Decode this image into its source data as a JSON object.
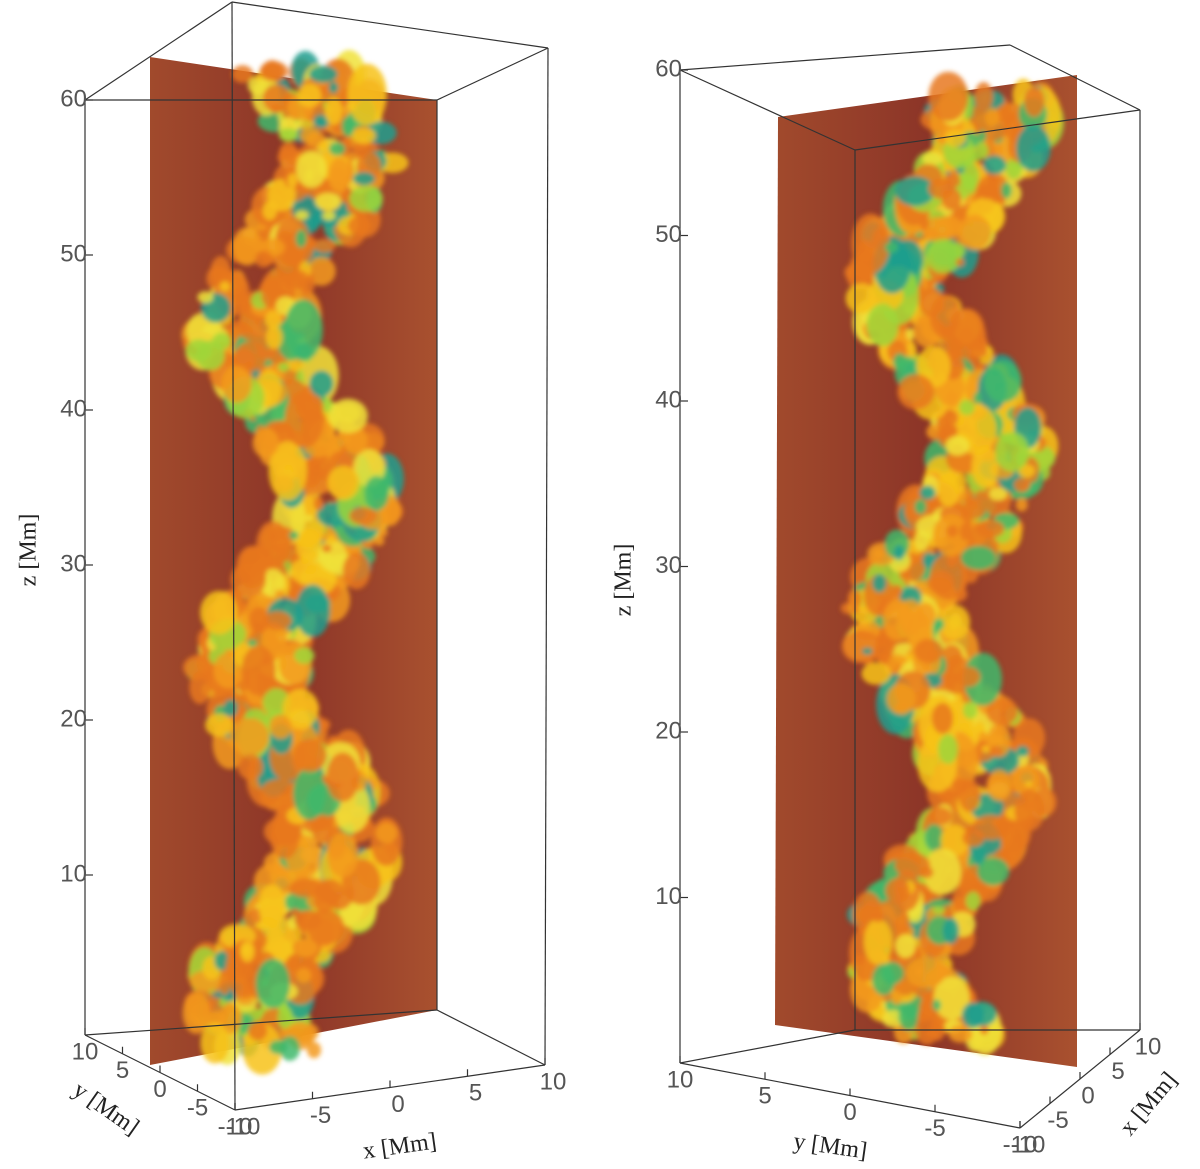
{
  "chart_data": [
    {
      "type": "3d-slice",
      "zlabel": "z [Mm]",
      "zlim": [
        0,
        60
      ],
      "zticks": [
        10,
        20,
        30,
        40,
        50,
        60
      ],
      "xlabel": "x [Mm]",
      "xlim": [
        -10,
        10
      ],
      "xticks": [
        -10,
        -5,
        0,
        5,
        10
      ],
      "ylabel": "y [Mm]",
      "ylim": [
        -10,
        10
      ],
      "yticks": [
        -10,
        -5,
        0,
        5,
        10
      ]
    },
    {
      "type": "3d-slice",
      "zlabel": "z [Mm]",
      "zlim": [
        0,
        60
      ],
      "zticks": [
        10,
        20,
        30,
        40,
        50,
        60
      ],
      "xlabel": "x [Mm]",
      "xlim": [
        -10,
        10
      ],
      "xticks": [
        -10,
        -5,
        0,
        5,
        10
      ],
      "ylabel": "y [Mm]",
      "ylim": [
        -10,
        10
      ],
      "yticks": [
        -10,
        -5,
        0,
        5,
        10
      ]
    }
  ]
}
